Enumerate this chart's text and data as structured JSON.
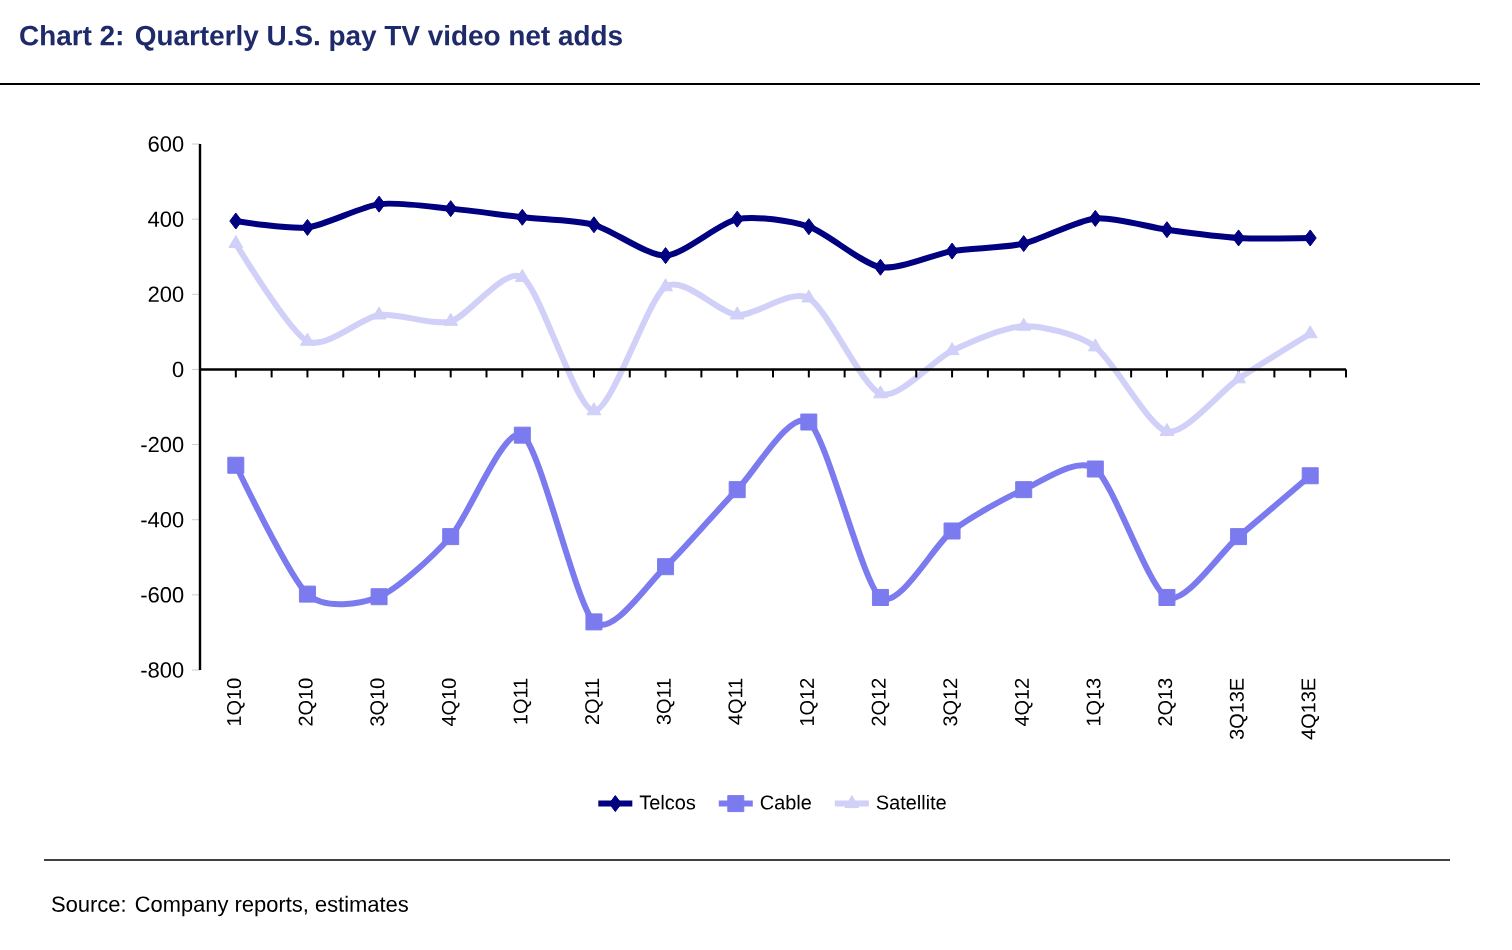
{
  "chart_data": {
    "type": "line",
    "title": "Chart 2: Quarterly U.S. pay TV video net adds",
    "categories": [
      "1Q10",
      "2Q10",
      "3Q10",
      "4Q10",
      "1Q11",
      "2Q11",
      "3Q11",
      "4Q11",
      "1Q12",
      "2Q12",
      "3Q12",
      "4Q12",
      "1Q13",
      "2Q13",
      "3Q13E",
      "4Q13E"
    ],
    "series": [
      {
        "name": "Telcos",
        "color": "#000080",
        "marker": "diamond",
        "values": [
          395,
          378,
          440,
          428,
          405,
          385,
          303,
          400,
          380,
          272,
          315,
          335,
          402,
          372,
          350,
          350
        ]
      },
      {
        "name": "Cable",
        "color": "#7b7bef",
        "marker": "square",
        "values": [
          -255,
          -598,
          -605,
          -445,
          -175,
          -672,
          -525,
          -320,
          -140,
          -607,
          -430,
          -320,
          -265,
          -607,
          -445,
          -283
        ]
      },
      {
        "name": "Satellite",
        "color": "#d0d0f8",
        "marker": "triangle",
        "values": [
          335,
          75,
          145,
          128,
          245,
          -110,
          220,
          145,
          190,
          -65,
          50,
          115,
          60,
          -165,
          -25,
          95
        ]
      }
    ],
    "ylim": [
      -800,
      600
    ],
    "yticks": [
      -800,
      -600,
      -400,
      -200,
      0,
      200,
      400,
      600
    ],
    "legend": "bottom",
    "annotations": [
      "Source: Company reports, estimates"
    ]
  }
}
